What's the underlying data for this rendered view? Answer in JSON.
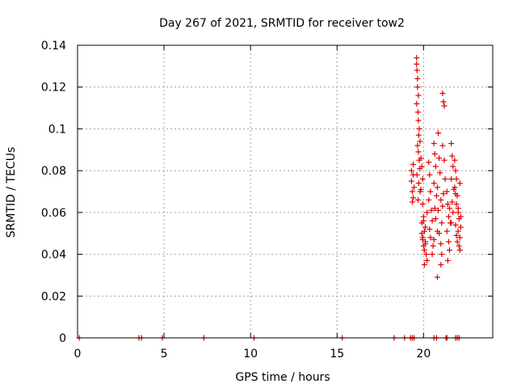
{
  "chart_data": {
    "type": "scatter",
    "title": "Day 267 of 2021, SRMTID for receiver tow2",
    "xlabel": "GPS time / hours",
    "ylabel": "SRMTID / TECUs",
    "xlim": [
      0,
      24
    ],
    "ylim": [
      0,
      0.14
    ],
    "xticks": [
      0,
      5,
      10,
      15,
      20
    ],
    "yticks": [
      0,
      0.02,
      0.04,
      0.06,
      0.08,
      0.1,
      0.12,
      0.14
    ],
    "xtick_labels": [
      "0",
      "5",
      "10",
      "15",
      "20"
    ],
    "ytick_labels": [
      "0",
      "0.02",
      "0.04",
      "0.06",
      "0.08",
      "0.1",
      "0.12",
      "0.14"
    ],
    "grid": true,
    "marker": "+",
    "color": "#e00000",
    "series": [
      {
        "name": "SRMTID",
        "x": [
          0.1,
          3.55,
          3.7,
          4.9,
          7.3,
          10.2,
          15.3,
          18.3,
          18.9,
          19.25,
          19.35,
          19.45,
          20.6,
          20.75,
          21.3,
          21.35,
          21.85,
          21.95,
          22.05,
          19.3,
          19.35,
          19.4,
          19.3,
          19.4,
          19.45,
          19.35,
          19.4,
          19.6,
          19.6,
          19.62,
          19.65,
          19.65,
          19.7,
          19.6,
          19.68,
          19.7,
          19.75,
          19.72,
          19.8,
          19.65,
          19.7,
          19.75,
          19.78,
          19.62,
          19.72,
          19.8,
          19.68,
          19.85,
          19.9,
          19.95,
          19.85,
          19.95,
          20.0,
          19.9,
          20.05,
          19.95,
          20.1,
          20.0,
          20.05,
          19.9,
          19.95,
          20.1,
          20.0,
          20.15,
          20.2,
          20.05,
          20.1,
          20.2,
          20.3,
          20.35,
          20.4,
          20.3,
          20.45,
          20.5,
          20.35,
          20.4,
          20.55,
          20.5,
          20.6,
          20.65,
          20.7,
          20.6,
          20.75,
          20.65,
          20.7,
          20.8,
          20.6,
          20.85,
          20.9,
          20.95,
          20.8,
          21.0,
          20.85,
          21.05,
          20.9,
          21.0,
          21.05,
          20.8,
          21.0,
          21.1,
          21.15,
          21.2,
          21.1,
          21.2,
          21.25,
          21.15,
          21.1,
          21.35,
          21.4,
          21.45,
          21.35,
          21.45,
          21.5,
          21.4,
          21.5,
          21.55,
          21.6,
          21.65,
          21.7,
          21.6,
          21.75,
          21.65,
          21.7,
          21.6,
          21.8,
          21.85,
          21.9,
          21.8,
          21.95,
          21.9,
          22.0,
          22.05,
          21.85,
          22.0,
          22.1,
          21.95,
          22.05,
          22.1,
          22.15,
          21.9,
          22.0,
          22.1,
          21.85,
          22.15
        ],
        "y": [
          0,
          0,
          0,
          0,
          0,
          0,
          0,
          0,
          0,
          0,
          0,
          0,
          0,
          0,
          0,
          0,
          0,
          0,
          0,
          0.075,
          0.07,
          0.067,
          0.08,
          0.078,
          0.072,
          0.065,
          0.083,
          0.134,
          0.131,
          0.128,
          0.124,
          0.12,
          0.116,
          0.112,
          0.108,
          0.104,
          0.1,
          0.097,
          0.094,
          0.092,
          0.089,
          0.085,
          0.081,
          0.078,
          0.074,
          0.07,
          0.066,
          0.086,
          0.082,
          0.076,
          0.071,
          0.064,
          0.058,
          0.055,
          0.051,
          0.048,
          0.046,
          0.044,
          0.042,
          0.05,
          0.047,
          0.053,
          0.056,
          0.04,
          0.037,
          0.035,
          0.045,
          0.06,
          0.084,
          0.078,
          0.07,
          0.066,
          0.061,
          0.056,
          0.052,
          0.048,
          0.044,
          0.04,
          0.093,
          0.088,
          0.082,
          0.074,
          0.068,
          0.062,
          0.057,
          0.051,
          0.047,
          0.098,
          0.086,
          0.079,
          0.072,
          0.066,
          0.061,
          0.055,
          0.05,
          0.045,
          0.04,
          0.029,
          0.035,
          0.117,
          0.113,
          0.111,
          0.092,
          0.085,
          0.076,
          0.069,
          0.063,
          0.07,
          0.064,
          0.058,
          0.051,
          0.046,
          0.042,
          0.037,
          0.062,
          0.055,
          0.093,
          0.087,
          0.082,
          0.076,
          0.071,
          0.065,
          0.06,
          0.055,
          0.085,
          0.08,
          0.076,
          0.072,
          0.068,
          0.064,
          0.06,
          0.057,
          0.054,
          0.051,
          0.048,
          0.046,
          0.044,
          0.042,
          0.058,
          0.049,
          0.062,
          0.074,
          0.069,
          0.053
        ]
      }
    ]
  }
}
